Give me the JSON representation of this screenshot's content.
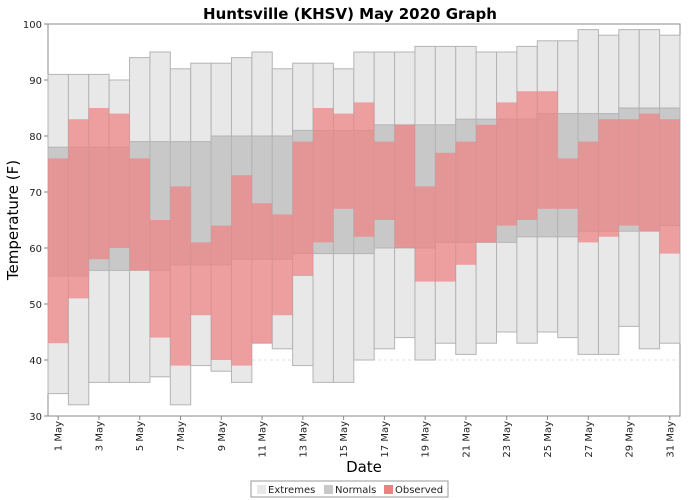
{
  "chart_data": {
    "type": "bar",
    "title": "Huntsville (KHSV) May 2020 Graph",
    "xlabel": "Date",
    "ylabel": "Temperature (F)",
    "ylim": [
      30,
      100
    ],
    "yticks": [
      30,
      40,
      50,
      60,
      70,
      80,
      90,
      100
    ],
    "grid": true,
    "legend_position": "bottom",
    "colors": {
      "Extremes": "#e8e8e8",
      "Normals": "#c8c8c8",
      "Observed": "#f08080"
    },
    "categories": [
      "1 May",
      "2 May",
      "3 May",
      "4 May",
      "5 May",
      "6 May",
      "7 May",
      "8 May",
      "9 May",
      "10 May",
      "11 May",
      "12 May",
      "13 May",
      "14 May",
      "15 May",
      "16 May",
      "17 May",
      "18 May",
      "19 May",
      "20 May",
      "21 May",
      "22 May",
      "23 May",
      "24 May",
      "25 May",
      "26 May",
      "27 May",
      "28 May",
      "29 May",
      "30 May",
      "31 May"
    ],
    "tick_labels": [
      {
        "day": 1,
        "label": "1 May"
      },
      {
        "day": 3,
        "label": "3 May"
      },
      {
        "day": 5,
        "label": "5 May"
      },
      {
        "day": 7,
        "label": "7 May"
      },
      {
        "day": 9,
        "label": "9 May"
      },
      {
        "day": 11,
        "label": "11 May"
      },
      {
        "day": 13,
        "label": "13 May"
      },
      {
        "day": 15,
        "label": "15 May"
      },
      {
        "day": 17,
        "label": "17 May"
      },
      {
        "day": 19,
        "label": "19 May"
      },
      {
        "day": 21,
        "label": "21 May"
      },
      {
        "day": 23,
        "label": "23 May"
      },
      {
        "day": 25,
        "label": "25 May"
      },
      {
        "day": 27,
        "label": "27 May"
      },
      {
        "day": 29,
        "label": "29 May"
      },
      {
        "day": 31,
        "label": "31 May"
      }
    ],
    "series": [
      {
        "name": "Extremes",
        "high": [
          91,
          91,
          91,
          90,
          94,
          95,
          92,
          93,
          93,
          94,
          95,
          92,
          93,
          93,
          92,
          95,
          95,
          95,
          96,
          96,
          96,
          95,
          95,
          96,
          97,
          97,
          99,
          98,
          99,
          99,
          98
        ],
        "low": [
          34,
          32,
          36,
          36,
          36,
          37,
          32,
          39,
          38,
          36,
          43,
          42,
          39,
          36,
          36,
          40,
          42,
          44,
          40,
          43,
          41,
          43,
          45,
          43,
          45,
          44,
          41,
          41,
          46,
          42,
          43
        ]
      },
      {
        "name": "Normals",
        "high": [
          78,
          78,
          78,
          78,
          79,
          79,
          79,
          79,
          80,
          80,
          80,
          80,
          81,
          81,
          81,
          81,
          82,
          82,
          82,
          82,
          83,
          83,
          83,
          83,
          84,
          84,
          84,
          84,
          85,
          85,
          85
        ],
        "low": [
          55,
          55,
          56,
          56,
          56,
          56,
          57,
          57,
          57,
          58,
          58,
          58,
          59,
          59,
          59,
          59,
          60,
          60,
          60,
          61,
          61,
          61,
          61,
          62,
          62,
          62,
          63,
          63,
          63,
          63,
          64
        ]
      },
      {
        "name": "Observed",
        "high": [
          76,
          83,
          85,
          84,
          76,
          65,
          71,
          61,
          64,
          73,
          68,
          66,
          79,
          85,
          84,
          86,
          79,
          82,
          71,
          77,
          79,
          82,
          86,
          88,
          88,
          76,
          79,
          83,
          83,
          84,
          83
        ],
        "low": [
          43,
          51,
          58,
          60,
          56,
          44,
          39,
          48,
          40,
          39,
          43,
          48,
          55,
          61,
          67,
          62,
          65,
          60,
          54,
          54,
          57,
          61,
          64,
          65,
          67,
          67,
          61,
          62,
          64,
          63,
          59
        ]
      }
    ]
  },
  "legend": [
    {
      "label": "Extremes",
      "color": "#e8e8e8"
    },
    {
      "label": "Normals",
      "color": "#c8c8c8"
    },
    {
      "label": "Observed",
      "color": "#f08080"
    }
  ]
}
